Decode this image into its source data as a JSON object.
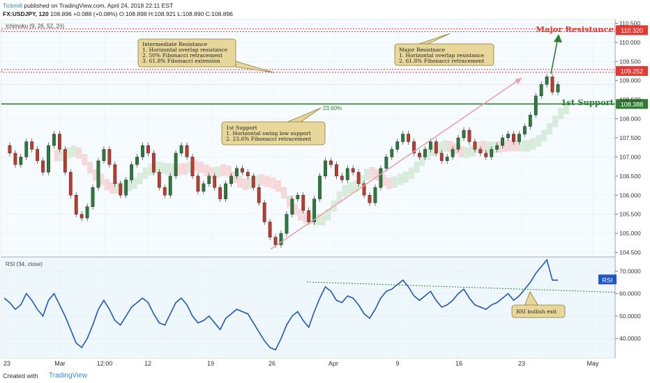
{
  "header": {
    "brand": "Tickmill",
    "published": "published on TradingView.com, April 24, 2018 22:11 EST",
    "symbol": "FX:USDJPY, 120",
    "last": "108.896",
    "change": "+0.088 (+0.08%)",
    "ohlc": "O:108.898 H:108.921 L:108.890 C:108.896"
  },
  "footer": {
    "created": "Created with",
    "tv": "TradingView"
  },
  "colors": {
    "up": "#2b7a3b",
    "down": "#c0392b",
    "rsi": "#1f55c6",
    "resistance": "#e53935",
    "support": "#2e7d32",
    "note_bg": "#e8d79a",
    "note_border": "#8c7a3a"
  },
  "chart_data": [
    {
      "type": "line",
      "indicator": "Ichimoku (9, 26, 52, 26)",
      "x_ticks": [
        "23",
        "Mar",
        "12:00",
        "12",
        "19",
        "26",
        "Apr",
        "9",
        "16",
        "23",
        "May"
      ],
      "y_ticks": [
        "110.500",
        "110.000",
        "109.500",
        "109.000",
        "108.500",
        "108.000",
        "107.500",
        "107.000",
        "106.500",
        "106.000",
        "105.500",
        "105.000",
        "104.500"
      ],
      "ylim": [
        104.4,
        110.6
      ],
      "series": [
        {
          "values": [
            107.3,
            107.1,
            106.8,
            107.0,
            107.4,
            107.2,
            106.9,
            106.6,
            107.3,
            107.6,
            107.2,
            106.6,
            106.0,
            105.5,
            105.4,
            105.7,
            106.2,
            106.9,
            107.2,
            106.8,
            106.3,
            106.0,
            106.4,
            106.8,
            107.0,
            107.3,
            107.1,
            106.6,
            106.2,
            106.0,
            106.5,
            107.1,
            107.3,
            107.0,
            106.5,
            106.1,
            106.3,
            106.5,
            106.2,
            105.9,
            106.3,
            106.5,
            106.7,
            106.6,
            106.5,
            106.2,
            105.8,
            105.3,
            104.9,
            104.7,
            105.0,
            105.5,
            105.9,
            106.0,
            105.6,
            105.3,
            105.9,
            106.5,
            106.9,
            106.8,
            106.5,
            106.4,
            106.7,
            106.6,
            106.3,
            106.0,
            105.8,
            106.2,
            106.7,
            107.0,
            107.2,
            107.4,
            107.6,
            107.4,
            107.1,
            107.0,
            107.2,
            107.4,
            107.1,
            106.9,
            107.0,
            107.2,
            107.5,
            107.7,
            107.4,
            107.2,
            107.1,
            107.0,
            107.2,
            107.3,
            107.5,
            107.6,
            107.4,
            107.6,
            107.8,
            108.1,
            108.6,
            108.9,
            109.1,
            108.7,
            108.9
          ]
        }
      ]
    },
    {
      "type": "line",
      "indicator": "RSI (34, close)",
      "y_ticks": [
        "70.0000",
        "60.0000",
        "50.0000",
        "40.0000"
      ],
      "ylim": [
        32,
        76
      ],
      "series": [
        {
          "name": "RSI",
          "values": [
            58,
            56,
            53,
            55,
            60,
            57,
            53,
            50,
            57,
            60,
            55,
            50,
            44,
            38,
            36,
            40,
            46,
            53,
            57,
            53,
            48,
            46,
            50,
            54,
            56,
            58,
            56,
            51,
            47,
            46,
            51,
            56,
            58,
            55,
            50,
            47,
            48,
            50,
            47,
            44,
            49,
            51,
            53,
            52,
            51,
            47,
            43,
            39,
            36,
            35,
            40,
            46,
            50,
            52,
            48,
            45,
            52,
            58,
            63,
            61,
            57,
            56,
            59,
            58,
            55,
            51,
            49,
            53,
            58,
            61,
            62,
            64,
            66,
            63,
            59,
            57,
            59,
            61,
            57,
            54,
            55,
            57,
            60,
            62,
            58,
            55,
            54,
            53,
            55,
            56,
            58,
            60,
            57,
            59,
            62,
            65,
            69,
            72,
            75,
            66,
            66
          ]
        }
      ],
      "last_label": "RSI"
    }
  ],
  "levels": {
    "major_resistance": {
      "value": 110.32,
      "label": "110.320",
      "caption": "Major Resistance"
    },
    "intermediate": {
      "value": 109.252,
      "label": "109.252"
    },
    "support": {
      "value": 108.388,
      "label": "108.388",
      "caption": "1st Support"
    },
    "fib": "23.60%"
  },
  "notes": {
    "intermediate": {
      "title": "Intermediate Resistance",
      "l1": "1. Horizontal overlap resistance",
      "l2": "2. 50% Fibonacci retracement",
      "l3": "3. 61.8% Fibonacci extension"
    },
    "major": {
      "title": "Major Resistnace",
      "l1": "1. Horizontal overlap resistance",
      "l2": "2. 61.8% Fibonacci retracement"
    },
    "support": {
      "title": "1st Support",
      "l1": "1. Horizontal swing low support",
      "l2": "2. 23.6% Fibonacci retracement"
    },
    "rsi": {
      "title": "RSI bullish exit"
    }
  }
}
